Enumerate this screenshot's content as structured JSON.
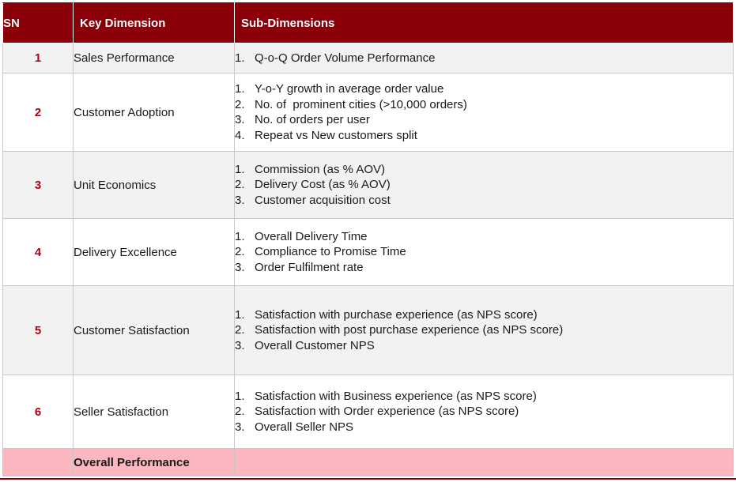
{
  "header": {
    "sn": "SN",
    "key_dimension": "Key Dimension",
    "sub_dimensions": "Sub-Dimensions"
  },
  "rows": [
    {
      "sn": "1",
      "key": "Sales Performance",
      "subs": [
        {
          "num": "1.",
          "text": "Q-o-Q Order Volume Performance"
        }
      ]
    },
    {
      "sn": "2",
      "key": "Customer Adoption",
      "subs": [
        {
          "num": "1.",
          "text": "Y-o-Y growth in average order value"
        },
        {
          "num": "2.",
          "text": "No. of  prominent cities (>10,000 orders)"
        },
        {
          "num": "3.",
          "text": "No. of orders per user"
        },
        {
          "num": "4.",
          "text": "Repeat vs New customers split"
        }
      ]
    },
    {
      "sn": "3",
      "key": "Unit Economics",
      "subs": [
        {
          "num": "1.",
          "text": "Commission (as % AOV)"
        },
        {
          "num": "2.",
          "text": "Delivery Cost (as % AOV)"
        },
        {
          "num": "3.",
          "text": "Customer acquisition cost"
        }
      ]
    },
    {
      "sn": "4",
      "key": "Delivery Excellence",
      "subs": [
        {
          "num": "1.",
          "text": "Overall Delivery Time"
        },
        {
          "num": "2.",
          "text": "Compliance to Promise Time"
        },
        {
          "num": "3.",
          "text": "Order Fulfilment rate"
        }
      ]
    },
    {
      "sn": "5",
      "key": "Customer Satisfaction",
      "subs": [
        {
          "num": "1.",
          "text": "Satisfaction with purchase experience (as NPS score)"
        },
        {
          "num": "2.",
          "text": "Satisfaction with post purchase experience (as NPS score)"
        },
        {
          "num": "3.",
          "text": "Overall Customer NPS"
        }
      ]
    },
    {
      "sn": "6",
      "key": "Seller Satisfaction",
      "subs": [
        {
          "num": "1.",
          "text": "Satisfaction with Business experience (as NPS score)"
        },
        {
          "num": "2.",
          "text": "Satisfaction with Order experience (as NPS score)"
        },
        {
          "num": "3.",
          "text": "Overall Seller NPS"
        }
      ]
    }
  ],
  "footer": {
    "label": "Overall Performance"
  },
  "colors": {
    "header_bg": "#8b0008",
    "sn_text": "#b00010",
    "row_alt_bg": "#f2f2f2",
    "footer_bg": "#fbb6bf"
  }
}
